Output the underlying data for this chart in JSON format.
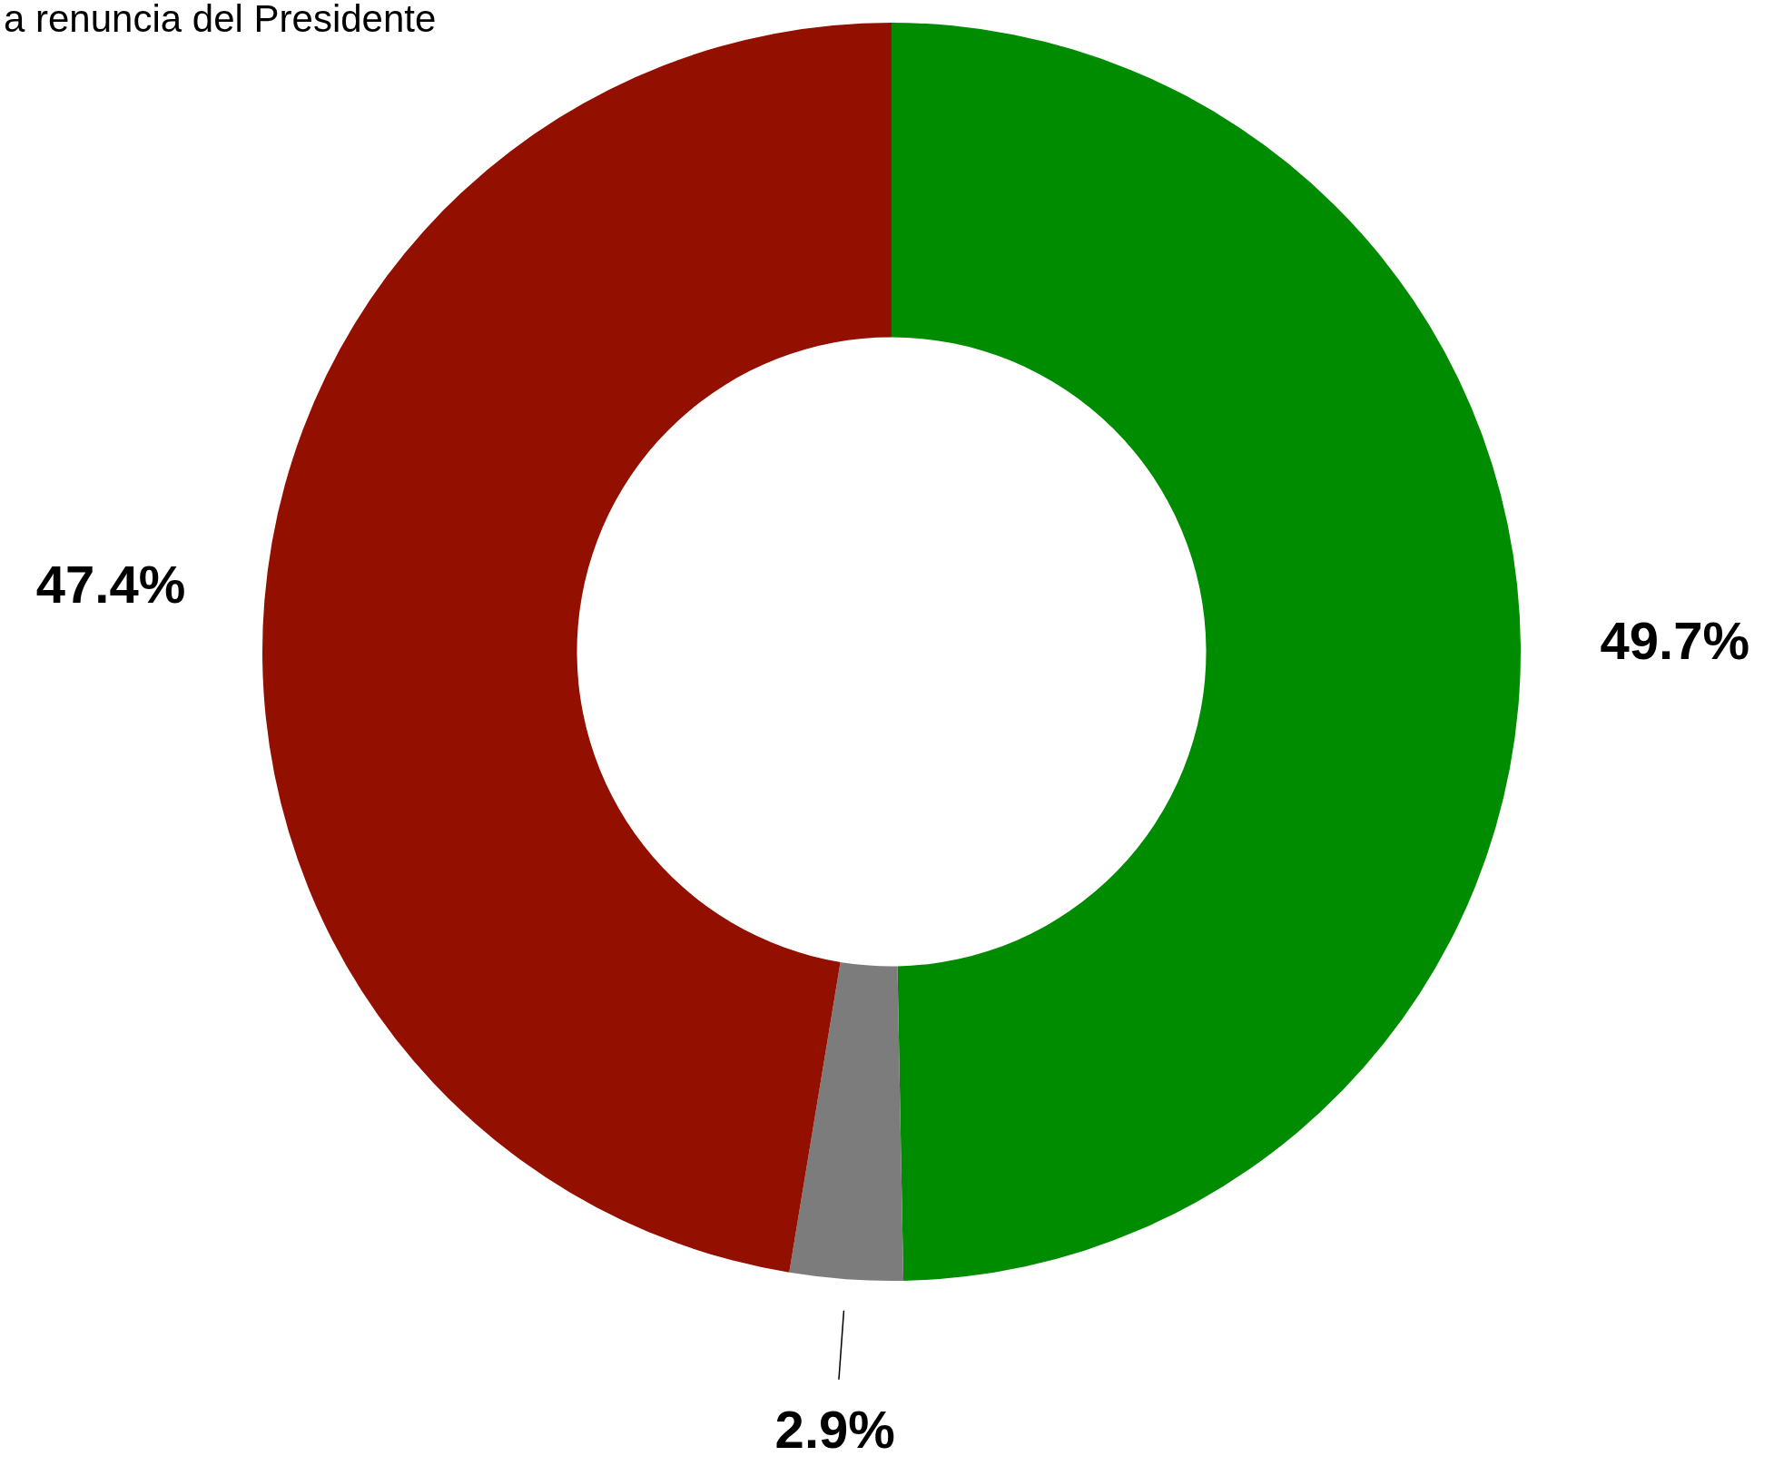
{
  "chart_data": {
    "type": "donut",
    "title": "a renuncia del Presidente",
    "categories": [
      null,
      null,
      null
    ],
    "values": [
      49.7,
      2.9,
      47.4
    ],
    "colors": [
      "#008c00",
      "#7c7c7c",
      "#931000"
    ],
    "value_labels": [
      "49.7%",
      "2.9%",
      "47.4%"
    ],
    "legend": false
  }
}
